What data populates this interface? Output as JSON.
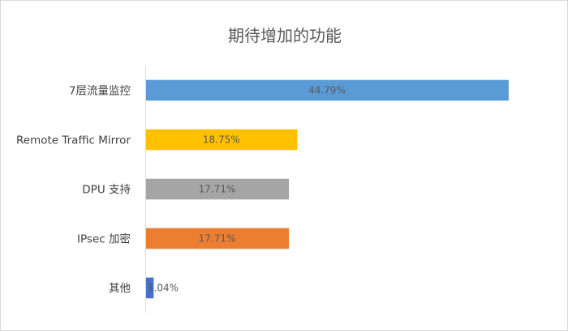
{
  "chart_data": {
    "type": "bar",
    "orientation": "horizontal",
    "title": "期待增加的功能",
    "xlabel": "",
    "ylabel": "",
    "categories": [
      "7层流量监控",
      "Remote Traffic Mirror",
      "DPU 支持",
      "IPsec 加密",
      "其他"
    ],
    "values": [
      44.79,
      18.75,
      17.71,
      17.71,
      1.04
    ],
    "data_labels": [
      "44.79%",
      "18.75%",
      "17.71%",
      "17.71%",
      "1.04%"
    ],
    "colors": [
      "#5b9bd5",
      "#ffc000",
      "#a5a5a5",
      "#ed7d31",
      "#4472c4"
    ],
    "xlim": [
      0,
      45
    ],
    "grid": false,
    "legend": "none"
  }
}
